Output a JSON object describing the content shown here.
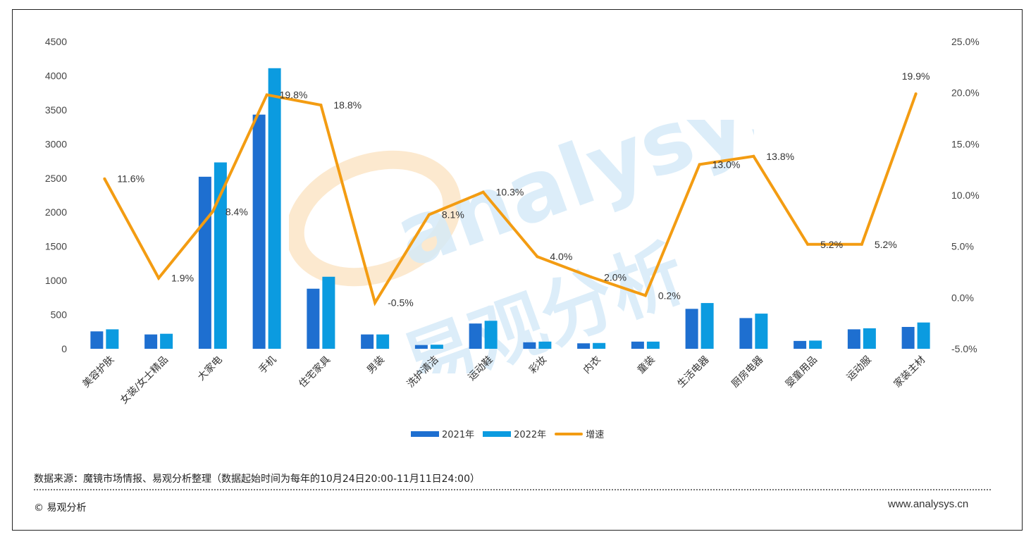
{
  "chart_data": {
    "type": "bar+line",
    "categories": [
      "美容护肤",
      "女装/女士精品",
      "大家电",
      "手机",
      "住宅家具",
      "男装",
      "洗护清洁",
      "运动鞋",
      "彩妆",
      "内衣",
      "童装",
      "生活电器",
      "厨房电器",
      "婴童用品",
      "运动服",
      "家装主材"
    ],
    "series": [
      {
        "name": "2021年",
        "type": "bar",
        "axis": "left",
        "color": "#1e6fd0",
        "values": [
          255,
          210,
          2520,
          3430,
          880,
          210,
          55,
          370,
          95,
          80,
          105,
          585,
          450,
          115,
          285,
          320
        ]
      },
      {
        "name": "2022年",
        "type": "bar",
        "axis": "left",
        "color": "#0b9be0",
        "values": [
          285,
          220,
          2730,
          4110,
          1055,
          210,
          60,
          410,
          105,
          85,
          105,
          670,
          515,
          120,
          300,
          385
        ]
      },
      {
        "name": "增速",
        "type": "line",
        "axis": "right",
        "color": "#f39c12",
        "values": [
          11.6,
          1.9,
          8.4,
          19.8,
          18.8,
          -0.5,
          8.1,
          10.3,
          4.0,
          2.0,
          0.2,
          13.0,
          13.8,
          5.2,
          5.2,
          19.9
        ],
        "labels": [
          "11.6%",
          "1.9%",
          "8.4%",
          "19.8%",
          "18.8%",
          "-0.5%",
          "8.1%",
          "10.3%",
          "4.0%",
          "2.0%",
          "0.2%",
          "13.0%",
          "13.8%",
          "5.2%",
          "5.2%",
          "19.9%"
        ]
      }
    ],
    "y_left": {
      "lim": [
        0,
        4500
      ],
      "ticks": [
        "0",
        "500",
        "1000",
        "1500",
        "2000",
        "2500",
        "3000",
        "3500",
        "4000",
        "4500"
      ]
    },
    "y_right": {
      "lim": [
        -5,
        25
      ],
      "ticks": [
        "-5.0%",
        "0.0%",
        "5.0%",
        "10.0%",
        "15.0%",
        "20.0%",
        "25.0%"
      ]
    },
    "grid": false,
    "legend_position": "bottom"
  },
  "legend": {
    "items": [
      "2021年",
      "2022年",
      "增速"
    ]
  },
  "watermark": {
    "latin": "analysys",
    "cjk": "易观分析"
  },
  "footer": {
    "source": "数据来源：魔镜市场情报、易观分析整理（数据起始时间为每年的10月24日20:00-11月11日24:00）",
    "copyright": "© 易观分析",
    "site": "www.analysys.cn"
  }
}
